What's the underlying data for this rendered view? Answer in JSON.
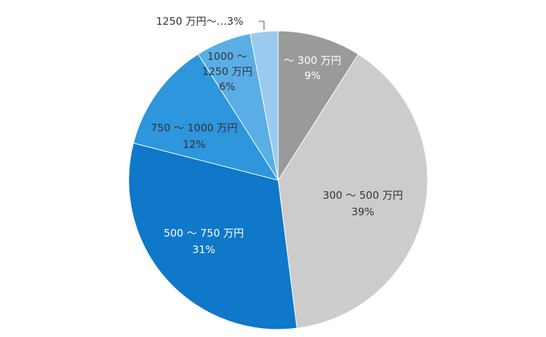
{
  "chart_data": {
    "type": "pie",
    "start_angle_deg": 0,
    "direction": "clockwise",
    "slices": [
      {
        "category": "～ 300 万円",
        "percent_label": "9%",
        "value": 9,
        "color": "#9a9a9a",
        "label_color": "#ffffff"
      },
      {
        "category": "300 ～ 500 万円",
        "percent_label": "39%",
        "value": 39,
        "color": "#cccccc",
        "label_color": "#333333"
      },
      {
        "category": "500 ～ 750 万円",
        "percent_label": "31%",
        "value": 31,
        "color": "#0f78c8",
        "label_color": "#ffffff"
      },
      {
        "category": "750 ～ 1000 万円",
        "percent_label": "12%",
        "value": 12,
        "color": "#2d96dc",
        "label_color": "#333333"
      },
      {
        "category": "1000 ～",
        "category_line2": "1250 万円",
        "percent_label": "6%",
        "value": 6,
        "color": "#5aaee6",
        "label_color": "#333333"
      },
      {
        "category": "1250 万円～",
        "category_suffix": "…",
        "percent_label": "3%",
        "value": 3,
        "color": "#9ccaee",
        "label_color": "#333333",
        "callout": true
      }
    ]
  }
}
